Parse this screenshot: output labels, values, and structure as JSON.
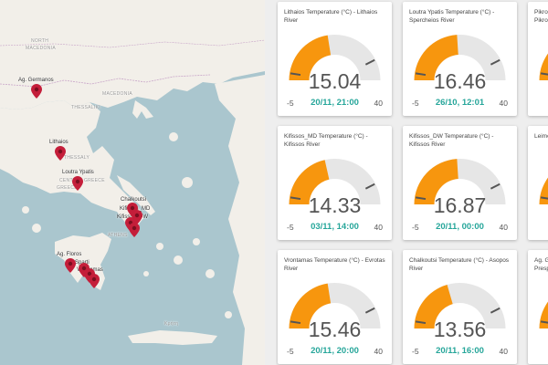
{
  "colors": {
    "gauge_fill": "#f7960e",
    "gauge_track": "#e6e6e6",
    "date_text": "#26a69a",
    "pin": "#c41e3a"
  },
  "map": {
    "labels": [
      {
        "name": "region-label-north-macedonia-1",
        "text": "NORTH"
      },
      {
        "name": "region-label-north-macedonia-2",
        "text": "MACEDONIA"
      },
      {
        "name": "region-label-macedonia",
        "text": "MACEDONIA"
      },
      {
        "name": "region-label-thessaliki",
        "text": "THESSALIKI"
      },
      {
        "name": "region-label-thessaly",
        "text": "THESSALY"
      },
      {
        "name": "region-label-central-greece",
        "text": "CENTRAL GREECE"
      },
      {
        "name": "region-label-greece",
        "text": "GREECE"
      },
      {
        "name": "region-label-athens",
        "text": "ATHENS"
      },
      {
        "name": "region-label-crete",
        "text": "Κρήτη"
      },
      {
        "name": "station-label-ag-germanos",
        "text": "Ag. Germanos"
      },
      {
        "name": "station-label-lithaios",
        "text": "Lithaios"
      },
      {
        "name": "station-label-loutra-ypatis",
        "text": "Loutra Ypatis"
      },
      {
        "name": "station-label-chalkoutsi",
        "text": "Chalkoutsi"
      },
      {
        "name": "station-label-kifissos-md",
        "text": "Kifissos_MD"
      },
      {
        "name": "station-label-kifissos-dw",
        "text": "Kifissos_DW"
      },
      {
        "name": "station-label-ag-floros",
        "text": "Ag. Floros"
      },
      {
        "name": "station-label-sparti",
        "text": "Sparti"
      },
      {
        "name": "station-label-vrontamas",
        "text": "Vrontamas"
      }
    ]
  },
  "cards": [
    {
      "title": "Lithaios Temperature (°C) - Lithaios River",
      "value": "15.04",
      "date": "20/11, 21:00",
      "min": "-5",
      "max": "40",
      "level": 0.45
    },
    {
      "title": "Loutra Ypatis Temperature (°C) - Spercheios River",
      "value": "16.46",
      "date": "26/10, 12:01",
      "min": "-5",
      "max": "40",
      "level": 0.48
    },
    {
      "title": "Pikrodafni Temperature (°C) - Pikrodafni River",
      "value": "",
      "date": "",
      "min": "",
      "max": "",
      "level": 0.46
    },
    {
      "title": "Kifissos_MD Temperature (°C) - Kifissos River",
      "value": "14.33",
      "date": "03/11, 14:00",
      "min": "-5",
      "max": "40",
      "level": 0.43
    },
    {
      "title": "Kifissos_DW Temperature (°C) - Kifissos River",
      "value": "16.87",
      "date": "20/11, 00:00",
      "min": "-5",
      "max": "40",
      "level": 0.48
    },
    {
      "title": "Leimonas Temperature (°C) - River",
      "value": "",
      "date": "",
      "min": "",
      "max": "",
      "level": 0.46
    },
    {
      "title": "Vrontamas Temperature (°C) - Evrotas River",
      "value": "15.46",
      "date": "20/11, 20:00",
      "min": "-5",
      "max": "40",
      "level": 0.45
    },
    {
      "title": "Chalkoutsi Temperature (°C) - Asopos River",
      "value": "13.56",
      "date": "20/11, 16:00",
      "min": "-5",
      "max": "40",
      "level": 0.41
    },
    {
      "title": "Ag. Germanos Temperature (°C) - Prespa",
      "value": "",
      "date": "",
      "min": "",
      "max": "",
      "level": 0.46
    }
  ]
}
